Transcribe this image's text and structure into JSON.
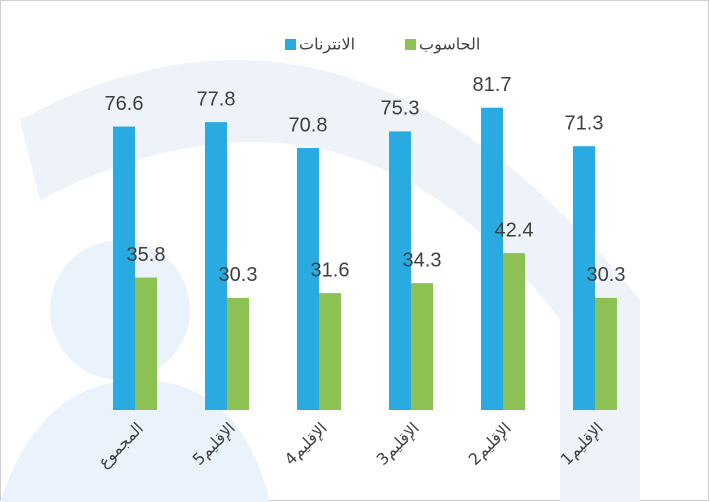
{
  "chart_data": {
    "type": "bar",
    "categories": [
      "المجموع",
      "الإقليم5",
      "الإقليم4",
      "الإقليم3",
      "الإقليم2",
      "الإقليم1"
    ],
    "series": [
      {
        "name": "الانترنات",
        "color": "#29abe2",
        "values": [
          76.6,
          77.8,
          70.8,
          75.3,
          81.7,
          71.3
        ]
      },
      {
        "name": "الحاسوب",
        "color": "#8dc153",
        "values": [
          35.8,
          30.3,
          31.6,
          34.3,
          42.4,
          30.3
        ]
      }
    ],
    "ylim": [
      0,
      100
    ]
  }
}
